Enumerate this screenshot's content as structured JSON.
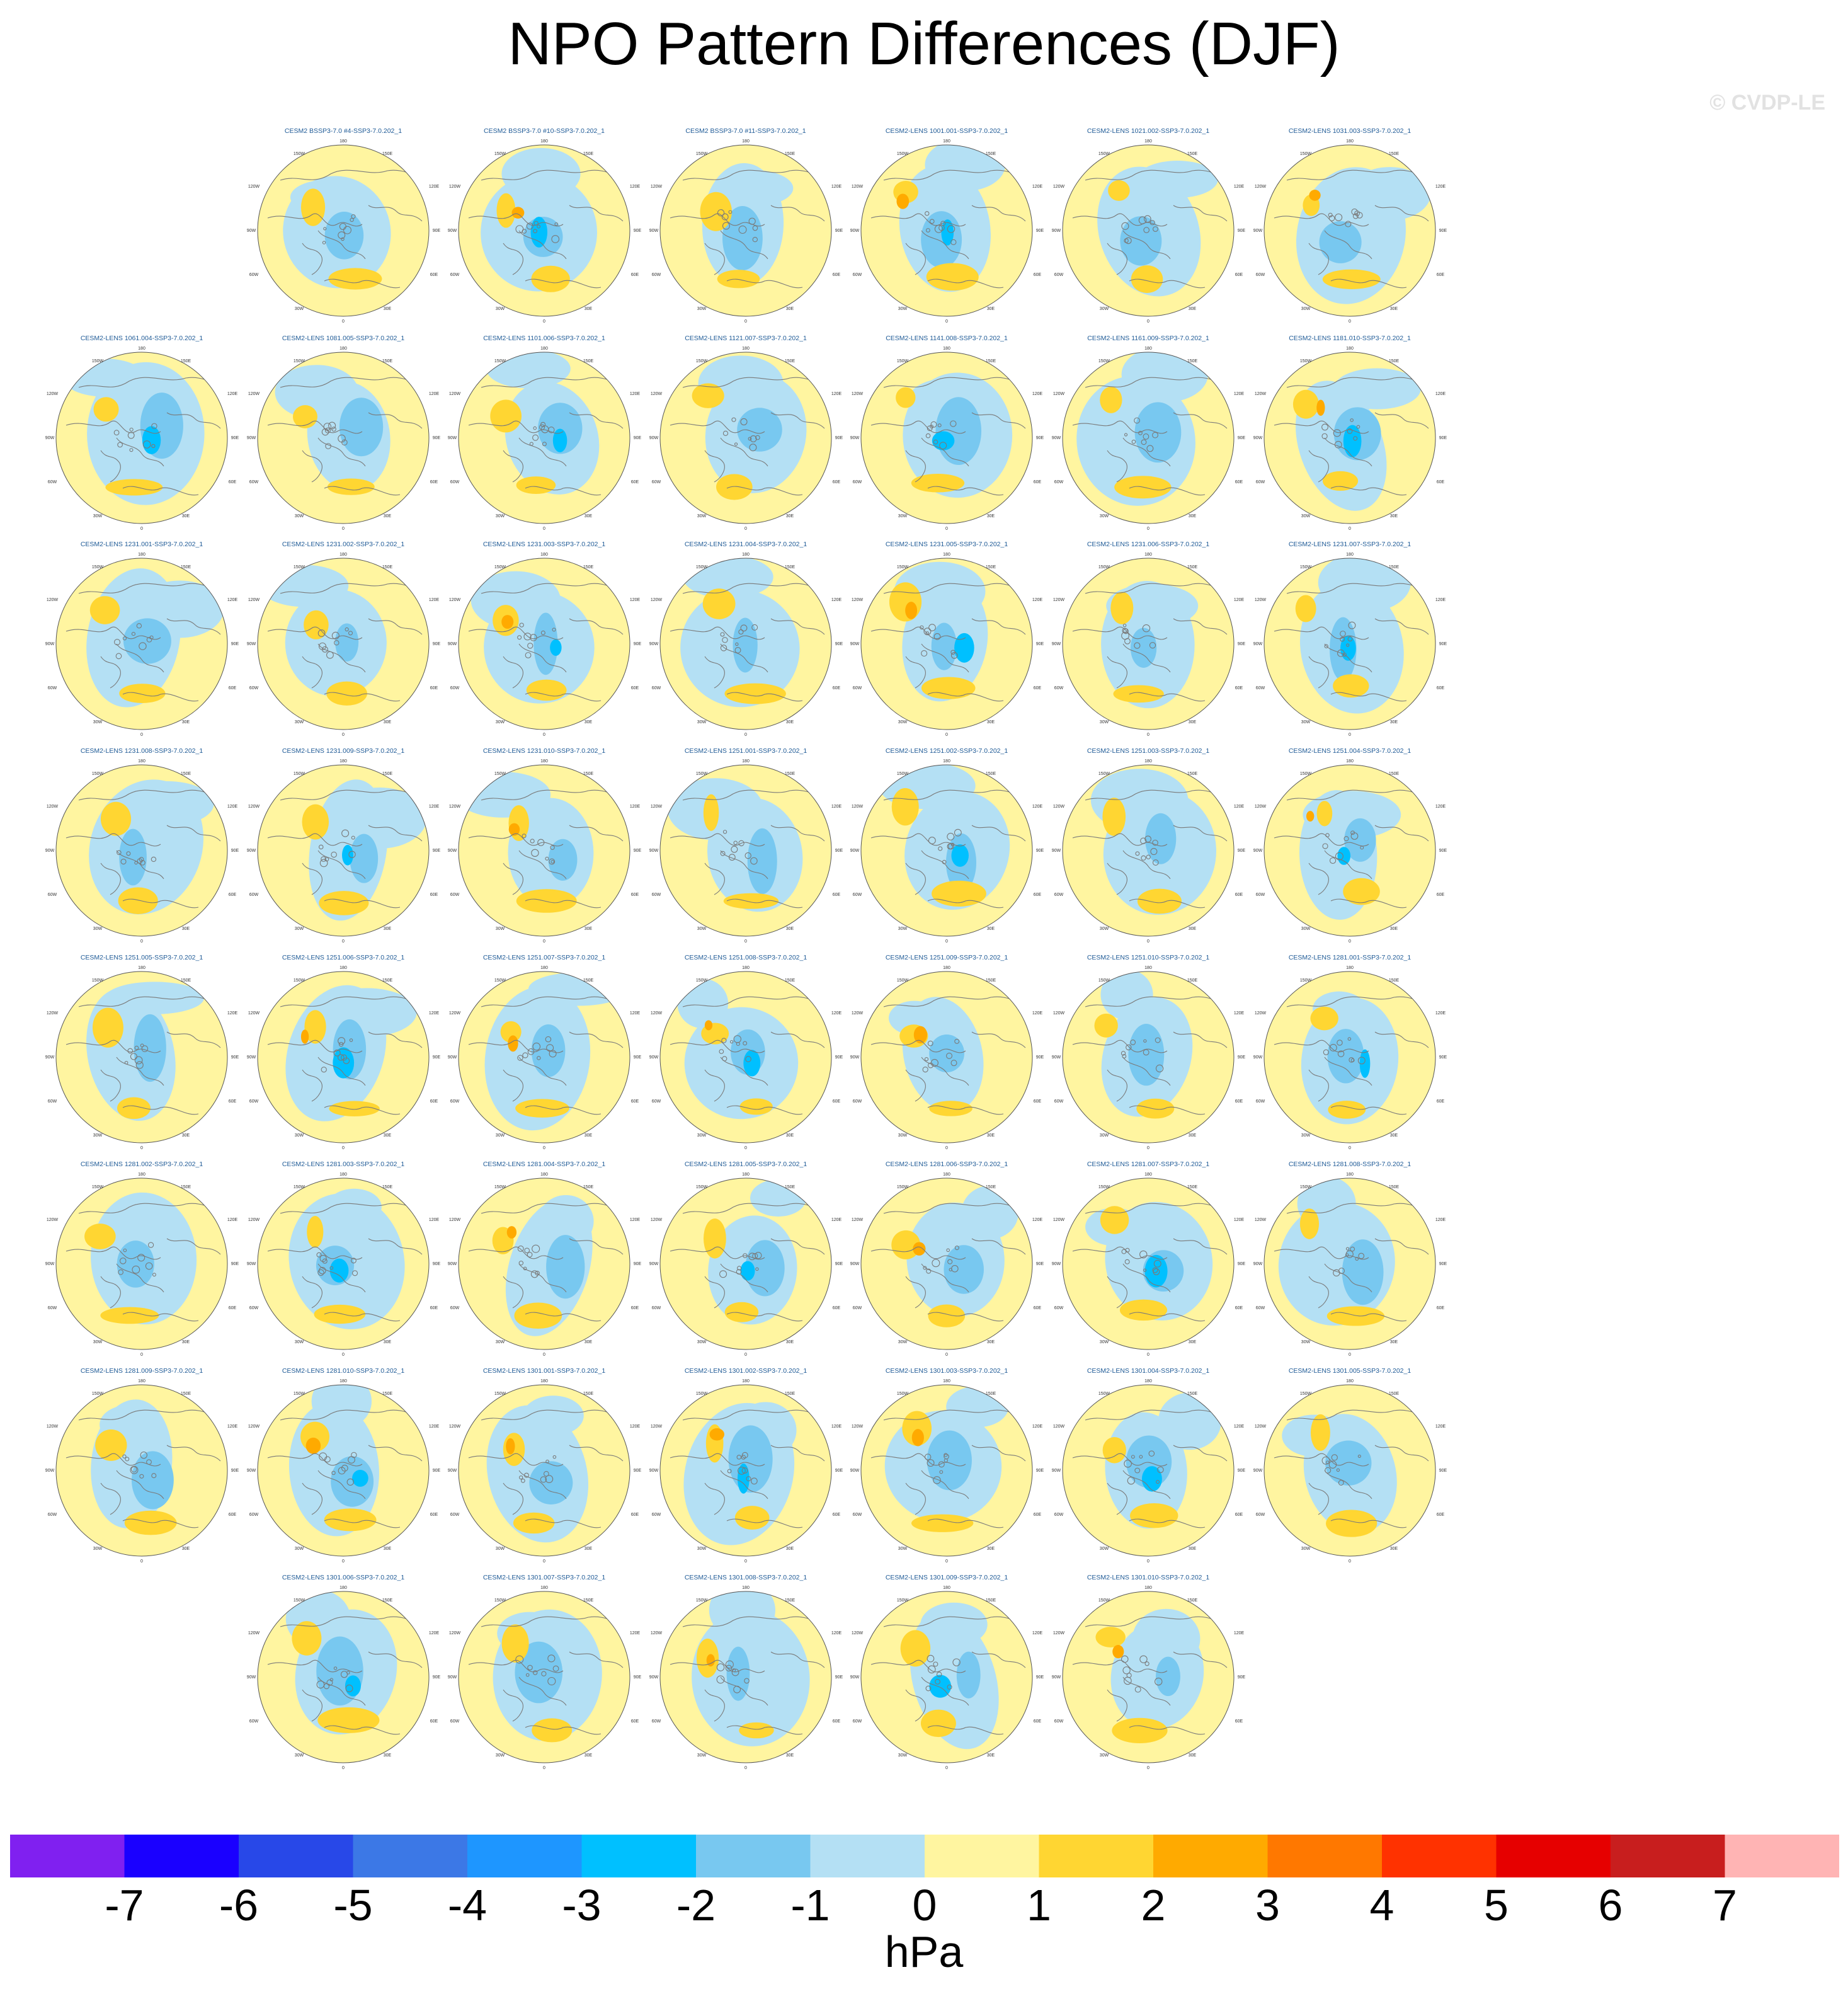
{
  "title": "NPO Pattern Differences (DJF)",
  "watermark": "© CVDP-LE",
  "chart_data": {
    "type": "heatmap",
    "title": "NPO Pattern Differences (DJF)",
    "projection": "north polar stereographic",
    "panel_lon_labels": [
      "180",
      "150W",
      "150E",
      "120W",
      "120E",
      "90W",
      "90E",
      "60W",
      "60E",
      "30W",
      "30E",
      "0"
    ],
    "rows": [
      [
        "CESM2 BSSP3-7.0 #4-SSP3-7.0.202_1",
        "CESM2 BSSP3-7.0 #10-SSP3-7.0.202_1",
        "CESM2 BSSP3-7.0 #11-SSP3-7.0.202_1",
        "CESM2-LENS 1001.001-SSP3-7.0.202_1",
        "CESM2-LENS 1021.002-SSP3-7.0.202_1",
        "CESM2-LENS 1031.003-SSP3-7.0.202_1"
      ],
      [
        "CESM2-LENS 1061.004-SSP3-7.0.202_1",
        "CESM2-LENS 1081.005-SSP3-7.0.202_1",
        "CESM2-LENS 1101.006-SSP3-7.0.202_1",
        "CESM2-LENS 1121.007-SSP3-7.0.202_1",
        "CESM2-LENS 1141.008-SSP3-7.0.202_1",
        "CESM2-LENS 1161.009-SSP3-7.0.202_1",
        "CESM2-LENS 1181.010-SSP3-7.0.202_1"
      ],
      [
        "CESM2-LENS 1231.001-SSP3-7.0.202_1",
        "CESM2-LENS 1231.002-SSP3-7.0.202_1",
        "CESM2-LENS 1231.003-SSP3-7.0.202_1",
        "CESM2-LENS 1231.004-SSP3-7.0.202_1",
        "CESM2-LENS 1231.005-SSP3-7.0.202_1",
        "CESM2-LENS 1231.006-SSP3-7.0.202_1",
        "CESM2-LENS 1231.007-SSP3-7.0.202_1"
      ],
      [
        "CESM2-LENS 1231.008-SSP3-7.0.202_1",
        "CESM2-LENS 1231.009-SSP3-7.0.202_1",
        "CESM2-LENS 1231.010-SSP3-7.0.202_1",
        "CESM2-LENS 1251.001-SSP3-7.0.202_1",
        "CESM2-LENS 1251.002-SSP3-7.0.202_1",
        "CESM2-LENS 1251.003-SSP3-7.0.202_1",
        "CESM2-LENS 1251.004-SSP3-7.0.202_1"
      ],
      [
        "CESM2-LENS 1251.005-SSP3-7.0.202_1",
        "CESM2-LENS 1251.006-SSP3-7.0.202_1",
        "CESM2-LENS 1251.007-SSP3-7.0.202_1",
        "CESM2-LENS 1251.008-SSP3-7.0.202_1",
        "CESM2-LENS 1251.009-SSP3-7.0.202_1",
        "CESM2-LENS 1251.010-SSP3-7.0.202_1",
        "CESM2-LENS 1281.001-SSP3-7.0.202_1"
      ],
      [
        "CESM2-LENS 1281.002-SSP3-7.0.202_1",
        "CESM2-LENS 1281.003-SSP3-7.0.202_1",
        "CESM2-LENS 1281.004-SSP3-7.0.202_1",
        "CESM2-LENS 1281.005-SSP3-7.0.202_1",
        "CESM2-LENS 1281.006-SSP3-7.0.202_1",
        "CESM2-LENS 1281.007-SSP3-7.0.202_1",
        "CESM2-LENS 1281.008-SSP3-7.0.202_1"
      ],
      [
        "CESM2-LENS 1281.009-SSP3-7.0.202_1",
        "CESM2-LENS 1281.010-SSP3-7.0.202_1",
        "CESM2-LENS 1301.001-SSP3-7.0.202_1",
        "CESM2-LENS 1301.002-SSP3-7.0.202_1",
        "CESM2-LENS 1301.003-SSP3-7.0.202_1",
        "CESM2-LENS 1301.004-SSP3-7.0.202_1",
        "CESM2-LENS 1301.005-SSP3-7.0.202_1"
      ],
      [
        "CESM2-LENS 1301.006-SSP3-7.0.202_1",
        "CESM2-LENS 1301.007-SSP3-7.0.202_1",
        "CESM2-LENS 1301.008-SSP3-7.0.202_1",
        "CESM2-LENS 1301.009-SSP3-7.0.202_1",
        "CESM2-LENS 1301.010-SSP3-7.0.202_1"
      ]
    ],
    "colorbar": {
      "unit": "hPa",
      "tick_labels": [
        "-7",
        "-6",
        "-5",
        "-4",
        "-3",
        "-2",
        "-1",
        "0",
        "1",
        "2",
        "3",
        "4",
        "5",
        "6",
        "7"
      ],
      "colors": [
        "#8020f0",
        "#1a00ff",
        "#2848e8",
        "#3c78e6",
        "#1e96ff",
        "#00c0ff",
        "#78c8f0",
        "#b4e0f4",
        "#fff5a0",
        "#ffd632",
        "#ffaa00",
        "#ff7800",
        "#ff3200",
        "#e60000",
        "#c81e1e",
        "#ffb4b4"
      ]
    }
  }
}
